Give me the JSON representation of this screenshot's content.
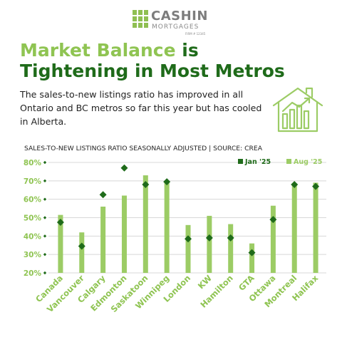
{
  "logo": {
    "name": "CASHIN",
    "sub": "MORTGAGES",
    "firm": "FIRM # 12345"
  },
  "title": {
    "highlight": "Market Balance",
    "rest_line1": " is",
    "line2": "Tightening in Most Metros"
  },
  "subtitle": "The sales-to-new listings ratio has improved in all Ontario and BC metros so far this year but has cooled in Alberta.",
  "icons": {
    "house": "house-chart-icon"
  },
  "colors": {
    "dark_green": "#1f6b1a",
    "light_green": "#9ccc65",
    "grid": "#d6d6d6"
  },
  "chart_data": {
    "type": "bar",
    "title": "SALES-TO-NEW LISTINGS RATIO SEASONALLY ADJUSTED | SOURCE: CREA",
    "categories": [
      "Canada",
      "Vancouver",
      "Calgary",
      "Edmonton",
      "Saskatoon",
      "Winnipeg",
      "London",
      "KW",
      "Hamilton",
      "GTA",
      "Ottawa",
      "Montreal",
      "Halifax"
    ],
    "series": [
      {
        "name": "Jan '25",
        "marker": "diamond",
        "color": "#1f6b1a",
        "values": [
          47.5,
          34.5,
          62.5,
          77,
          68,
          69.5,
          38.5,
          39,
          39,
          31,
          49,
          68,
          67
        ]
      },
      {
        "name": "Aug '25",
        "marker": "bar",
        "color": "#9ccc65",
        "values": [
          51.5,
          42,
          56,
          62,
          73,
          70,
          46,
          51,
          46.5,
          36,
          56.5,
          68.5,
          69
        ]
      }
    ],
    "ylim": [
      20,
      80
    ],
    "yticks": [
      20,
      30,
      40,
      50,
      60,
      70,
      80
    ],
    "ytick_labels": [
      "20%",
      "30%",
      "40%",
      "50%",
      "60%",
      "70%",
      "80%"
    ],
    "grid": true,
    "legend": "top-right"
  }
}
